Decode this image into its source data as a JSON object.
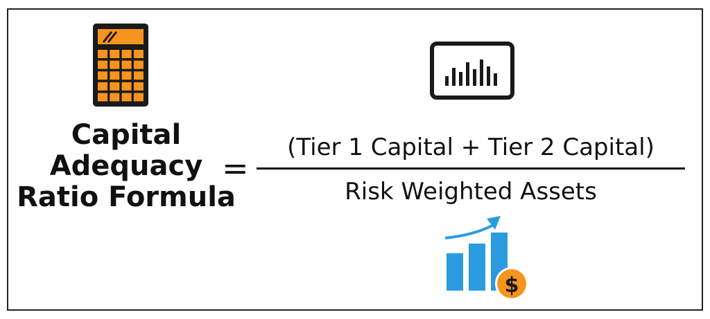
{
  "formula": {
    "name_lines": [
      "Capital",
      "Adequacy",
      "Ratio Formula"
    ],
    "equals_sign": "=",
    "numerator": "(Tier 1 Capital + Tier 2 Capital)",
    "denominator": "Risk Weighted Assets"
  },
  "icons": {
    "calculator": "calculator-icon",
    "monitor": "bar-chart-monitor-icon",
    "growth": "growth-chart-dollar-icon",
    "dollar_symbol": "$"
  },
  "colors": {
    "text": "#111111",
    "calculator_orange": "#f7941d",
    "calculator_body": "#1a1a1a",
    "chart_blue": "#2b9be0",
    "coin_orange": "#f7941d"
  }
}
